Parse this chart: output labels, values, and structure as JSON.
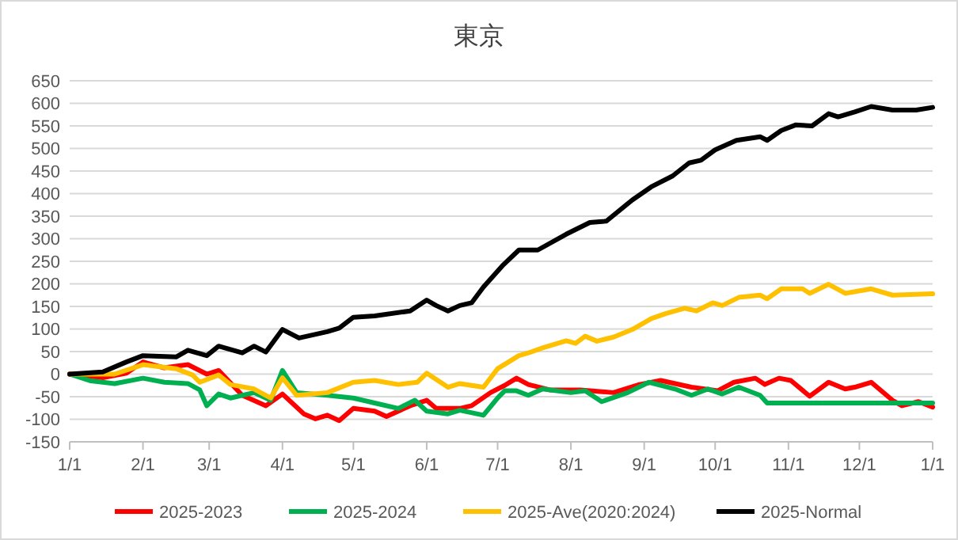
{
  "chart_data": {
    "type": "line",
    "title": "東京",
    "xlim": [
      "2025-01-01",
      "2026-01-01"
    ],
    "xticks": [
      {
        "value": "2025-01-01",
        "label": "1/1"
      },
      {
        "value": "2025-02-01",
        "label": "2/1"
      },
      {
        "value": "2025-03-01",
        "label": "3/1"
      },
      {
        "value": "2025-04-01",
        "label": "4/1"
      },
      {
        "value": "2025-05-01",
        "label": "5/1"
      },
      {
        "value": "2025-06-01",
        "label": "6/1"
      },
      {
        "value": "2025-07-01",
        "label": "7/1"
      },
      {
        "value": "2025-08-01",
        "label": "8/1"
      },
      {
        "value": "2025-09-01",
        "label": "9/1"
      },
      {
        "value": "2025-10-01",
        "label": "10/1"
      },
      {
        "value": "2025-11-01",
        "label": "11/1"
      },
      {
        "value": "2025-12-01",
        "label": "12/1"
      },
      {
        "value": "2026-01-01",
        "label": "1/1"
      }
    ],
    "ylim": [
      -150,
      650
    ],
    "yticks": [
      -150,
      -100,
      -50,
      0,
      50,
      100,
      150,
      200,
      250,
      300,
      350,
      400,
      450,
      500,
      550,
      600,
      650
    ],
    "grid": "y",
    "legend": "bottom",
    "line_style": "solid",
    "marker": "none",
    "series": [
      {
        "name": "2025-2023",
        "color": "#ff0000",
        "x": [
          "2025-01-01",
          "2025-01-15",
          "2025-01-25",
          "2025-02-01",
          "2025-02-10",
          "2025-02-20",
          "2025-02-28",
          "2025-03-05",
          "2025-03-15",
          "2025-03-25",
          "2025-04-01",
          "2025-04-10",
          "2025-04-15",
          "2025-04-20",
          "2025-04-25",
          "2025-05-01",
          "2025-05-10",
          "2025-05-15",
          "2025-05-25",
          "2025-06-01",
          "2025-06-05",
          "2025-06-15",
          "2025-06-20",
          "2025-06-28",
          "2025-07-04",
          "2025-07-09",
          "2025-07-14",
          "2025-07-23",
          "2025-08-05",
          "2025-08-19",
          "2025-08-30",
          "2025-09-08",
          "2025-09-21",
          "2025-10-02",
          "2025-10-09",
          "2025-10-18",
          "2025-10-22",
          "2025-10-28",
          "2025-11-02",
          "2025-11-10",
          "2025-11-18",
          "2025-11-25",
          "2025-11-29",
          "2025-12-06",
          "2025-12-15",
          "2025-12-19",
          "2025-12-26",
          "2026-01-01"
        ],
        "values": [
          0,
          -8,
          2,
          27,
          14,
          21,
          0,
          8,
          -47,
          -70,
          -44,
          -88,
          -99,
          -91,
          -103,
          -76,
          -82,
          -94,
          -70,
          -58,
          -76,
          -76,
          -70,
          -41,
          -25,
          -9,
          -23,
          -35,
          -35,
          -41,
          -23,
          -14,
          -29,
          -37,
          -18,
          -9,
          -23,
          -9,
          -14,
          -49,
          -18,
          -33,
          -29,
          -18,
          -58,
          -70,
          -61,
          -73
        ]
      },
      {
        "name": "2025-2024",
        "color": "#00b050",
        "x": [
          "2025-01-01",
          "2025-01-10",
          "2025-01-20",
          "2025-02-01",
          "2025-02-10",
          "2025-02-20",
          "2025-02-25",
          "2025-02-28",
          "2025-03-05",
          "2025-03-10",
          "2025-03-20",
          "2025-03-27",
          "2025-04-01",
          "2025-04-07",
          "2025-04-20",
          "2025-05-01",
          "2025-05-10",
          "2025-05-20",
          "2025-05-27",
          "2025-06-01",
          "2025-06-10",
          "2025-06-15",
          "2025-06-25",
          "2025-07-01",
          "2025-07-04",
          "2025-07-09",
          "2025-07-14",
          "2025-07-20",
          "2025-08-01",
          "2025-08-07",
          "2025-08-14",
          "2025-08-25",
          "2025-09-03",
          "2025-09-14",
          "2025-09-21",
          "2025-09-28",
          "2025-10-04",
          "2025-10-11",
          "2025-10-20",
          "2025-10-23",
          "2025-12-17",
          "2026-01-01"
        ],
        "values": [
          0,
          -15,
          -21,
          -9,
          -18,
          -21,
          -35,
          -70,
          -44,
          -53,
          -41,
          -58,
          8,
          -41,
          -47,
          -53,
          -64,
          -76,
          -58,
          -82,
          -88,
          -80,
          -91,
          -53,
          -37,
          -37,
          -47,
          -33,
          -41,
          -37,
          -61,
          -41,
          -18,
          -33,
          -47,
          -33,
          -44,
          -29,
          -47,
          -64,
          -64,
          -64
        ]
      },
      {
        "name": "2025-Ave(2020:2024)",
        "color": "#ffc000",
        "x": [
          "2025-01-01",
          "2025-01-20",
          "2025-02-01",
          "2025-02-15",
          "2025-02-22",
          "2025-02-25",
          "2025-03-05",
          "2025-03-10",
          "2025-03-20",
          "2025-03-27",
          "2025-04-01",
          "2025-04-07",
          "2025-04-20",
          "2025-05-01",
          "2025-05-10",
          "2025-05-20",
          "2025-05-28",
          "2025-06-01",
          "2025-06-10",
          "2025-06-15",
          "2025-06-25",
          "2025-07-01",
          "2025-07-10",
          "2025-07-14",
          "2025-07-20",
          "2025-07-30",
          "2025-08-03",
          "2025-08-07",
          "2025-08-12",
          "2025-08-19",
          "2025-08-27",
          "2025-09-04",
          "2025-09-10",
          "2025-09-18",
          "2025-09-23",
          "2025-09-30",
          "2025-10-04",
          "2025-10-11",
          "2025-10-20",
          "2025-10-23",
          "2025-10-29",
          "2025-11-07",
          "2025-11-10",
          "2025-11-18",
          "2025-11-25",
          "2025-12-06",
          "2025-12-15",
          "2026-01-01"
        ],
        "values": [
          0,
          0,
          21,
          12,
          -2,
          -18,
          -2,
          -23,
          -33,
          -53,
          -8,
          -47,
          -41,
          -18,
          -14,
          -23,
          -18,
          2,
          -29,
          -21,
          -29,
          12,
          41,
          47,
          58,
          74,
          68,
          84,
          73,
          82,
          99,
          123,
          134,
          146,
          140,
          158,
          152,
          170,
          175,
          167,
          189,
          189,
          179,
          199,
          179,
          189,
          175,
          178
        ]
      },
      {
        "name": "2025-Normal",
        "color": "#000000",
        "x": [
          "2025-01-01",
          "2025-01-15",
          "2025-01-25",
          "2025-02-01",
          "2025-02-15",
          "2025-02-20",
          "2025-02-28",
          "2025-03-05",
          "2025-03-15",
          "2025-03-20",
          "2025-03-25",
          "2025-04-01",
          "2025-04-08",
          "2025-04-20",
          "2025-04-25",
          "2025-05-01",
          "2025-05-10",
          "2025-05-25",
          "2025-06-01",
          "2025-06-05",
          "2025-06-10",
          "2025-06-15",
          "2025-06-20",
          "2025-06-25",
          "2025-07-03",
          "2025-07-10",
          "2025-07-18",
          "2025-07-30",
          "2025-08-09",
          "2025-08-16",
          "2025-08-27",
          "2025-09-04",
          "2025-09-13",
          "2025-09-20",
          "2025-09-25",
          "2025-10-01",
          "2025-10-10",
          "2025-10-20",
          "2025-10-23",
          "2025-10-29",
          "2025-11-04",
          "2025-11-11",
          "2025-11-18",
          "2025-11-22",
          "2025-11-29",
          "2025-12-06",
          "2025-12-15",
          "2025-12-25",
          "2026-01-01"
        ],
        "values": [
          0,
          5,
          27,
          41,
          38,
          53,
          41,
          62,
          47,
          62,
          49,
          99,
          80,
          94,
          102,
          126,
          129,
          140,
          164,
          152,
          140,
          152,
          158,
          193,
          240,
          275,
          275,
          310,
          336,
          339,
          386,
          415,
          439,
          468,
          474,
          497,
          518,
          526,
          518,
          540,
          552,
          550,
          577,
          570,
          581,
          593,
          585,
          585,
          591
        ]
      }
    ]
  }
}
